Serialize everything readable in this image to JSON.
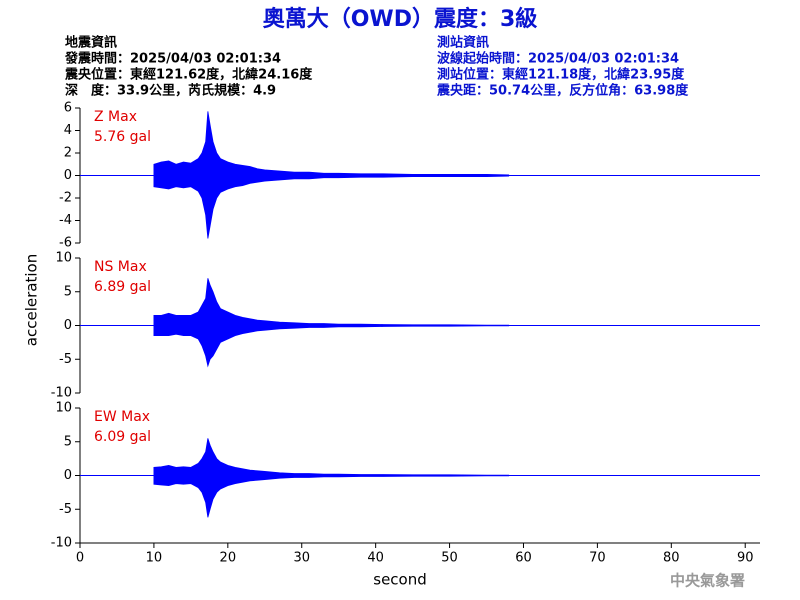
{
  "header": {
    "title": "奧萬大（OWD）震度：3級",
    "left": [
      "地震資訊",
      "發震時間：2025/04/03 02:01:34",
      "震央位置：東經121.62度，北緯24.16度",
      "深　度：33.9公里，芮氏規模：4.9"
    ],
    "right": [
      "測站資訊",
      "波線起始時間：2025/04/03 02:01:34",
      "測站位置：東經121.18度，北緯23.95度",
      "震央距：50.74公里，反方位角：63.98度"
    ],
    "footer": "中央氣象署"
  },
  "chart_data": [
    {
      "type": "area",
      "label": "Z Max",
      "max_label": "5.76 gal",
      "color": "#0000ff",
      "label_color": "#e00000",
      "x": [
        10,
        11,
        12,
        13,
        14,
        15,
        16,
        16.5,
        17,
        17.3,
        17.6,
        18,
        18.5,
        19,
        20,
        21,
        22,
        23,
        24,
        25,
        27,
        29,
        31,
        33,
        35,
        38,
        41,
        45,
        50,
        55,
        58
      ],
      "upper": [
        1.0,
        1.2,
        1.3,
        1.0,
        1.2,
        1.1,
        1.5,
        2.0,
        3.0,
        5.7,
        4.5,
        3.0,
        2.0,
        1.5,
        1.2,
        1.0,
        0.9,
        0.8,
        0.6,
        0.5,
        0.4,
        0.3,
        0.3,
        0.2,
        0.2,
        0.15,
        0.15,
        0.1,
        0.1,
        0.1,
        0.05
      ],
      "lower": [
        -1.0,
        -1.1,
        -1.2,
        -1.0,
        -1.1,
        -1.0,
        -1.4,
        -2.0,
        -3.5,
        -5.6,
        -4.5,
        -3.0,
        -2.0,
        -1.5,
        -1.2,
        -1.0,
        -0.9,
        -0.7,
        -0.6,
        -0.5,
        -0.4,
        -0.3,
        -0.3,
        -0.2,
        -0.2,
        -0.15,
        -0.15,
        -0.1,
        -0.1,
        -0.1,
        -0.05
      ],
      "xlim": [
        0,
        92
      ],
      "ylim": [
        -6,
        6
      ],
      "yticks": [
        -6,
        -4,
        -2,
        0,
        2,
        4,
        6
      ]
    },
    {
      "type": "area",
      "label": "NS Max",
      "max_label": "6.89 gal",
      "color": "#0000ff",
      "label_color": "#e00000",
      "ylabel": "acceleration",
      "x": [
        10,
        11,
        12,
        13,
        14,
        15,
        16,
        16.5,
        17,
        17.3,
        17.6,
        18,
        18.5,
        19,
        20,
        21,
        22,
        23,
        24,
        25,
        27,
        29,
        31,
        33,
        35,
        38,
        41,
        45,
        50,
        55,
        58
      ],
      "upper": [
        1.5,
        1.5,
        1.8,
        1.5,
        1.5,
        1.5,
        2.0,
        3.0,
        4.0,
        7.0,
        6.0,
        5.0,
        3.5,
        2.5,
        2.0,
        1.5,
        1.2,
        1.0,
        0.8,
        0.7,
        0.5,
        0.4,
        0.3,
        0.3,
        0.2,
        0.2,
        0.15,
        0.1,
        0.1,
        0.05,
        0.05
      ],
      "lower": [
        -1.5,
        -1.5,
        -1.5,
        -1.3,
        -1.5,
        -1.5,
        -2.0,
        -3.0,
        -4.5,
        -6.0,
        -5.0,
        -4.5,
        -3.5,
        -2.5,
        -2.0,
        -1.5,
        -1.2,
        -1.0,
        -0.8,
        -0.7,
        -0.5,
        -0.4,
        -0.3,
        -0.3,
        -0.2,
        -0.2,
        -0.15,
        -0.1,
        -0.1,
        -0.05,
        -0.05
      ],
      "xlim": [
        0,
        92
      ],
      "ylim": [
        -10,
        10
      ],
      "yticks": [
        -10,
        -5,
        0,
        5,
        10
      ]
    },
    {
      "type": "area",
      "label": "EW Max",
      "max_label": "6.09 gal",
      "color": "#0000ff",
      "label_color": "#e00000",
      "xlabel": "second",
      "x": [
        10,
        11,
        12,
        13,
        14,
        15,
        16,
        16.5,
        17,
        17.3,
        17.6,
        18,
        18.5,
        19,
        20,
        21,
        22,
        23,
        24,
        25,
        27,
        29,
        31,
        33,
        35,
        38,
        41,
        45,
        50,
        55,
        58
      ],
      "upper": [
        1.2,
        1.3,
        1.5,
        1.2,
        1.3,
        1.2,
        1.8,
        2.5,
        3.5,
        5.5,
        4.5,
        3.5,
        2.5,
        2.0,
        1.5,
        1.2,
        1.0,
        0.8,
        0.7,
        0.6,
        0.4,
        0.3,
        0.3,
        0.2,
        0.2,
        0.15,
        0.15,
        0.1,
        0.1,
        0.05,
        0.05
      ],
      "lower": [
        -1.3,
        -1.4,
        -1.5,
        -1.2,
        -1.3,
        -1.2,
        -1.8,
        -2.5,
        -4.0,
        -6.2,
        -5.0,
        -3.5,
        -2.5,
        -2.0,
        -1.5,
        -1.2,
        -1.0,
        -0.8,
        -0.7,
        -0.6,
        -0.4,
        -0.3,
        -0.3,
        -0.2,
        -0.2,
        -0.15,
        -0.15,
        -0.1,
        -0.1,
        -0.05,
        -0.05
      ],
      "xlim": [
        0,
        92
      ],
      "ylim": [
        -10,
        10
      ],
      "yticks": [
        -10,
        -5,
        0,
        5,
        10
      ],
      "xticks": [
        0,
        10,
        20,
        30,
        40,
        50,
        60,
        70,
        80,
        90
      ]
    }
  ]
}
